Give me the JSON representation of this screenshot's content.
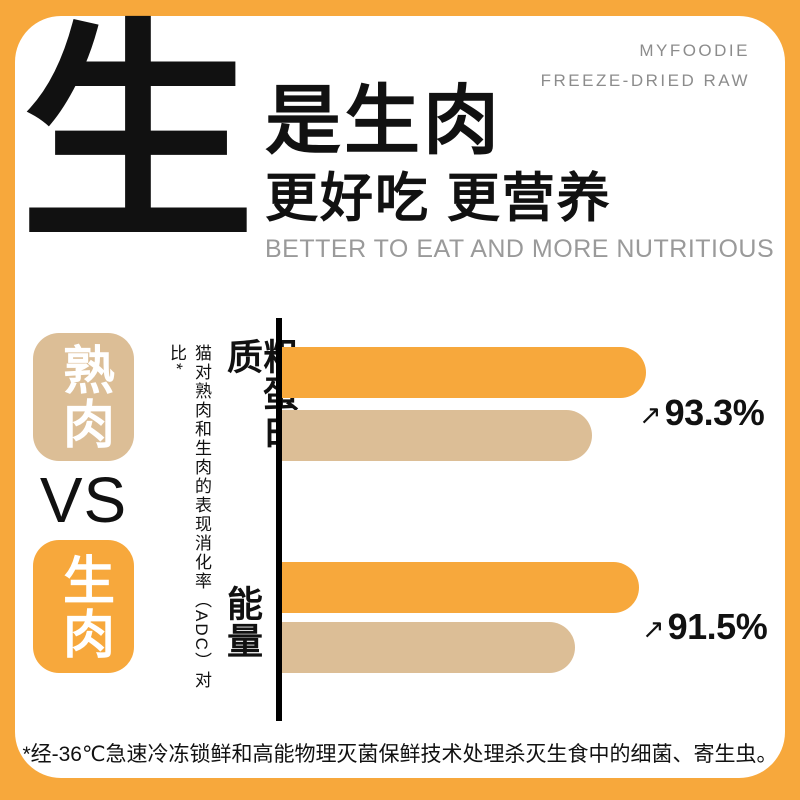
{
  "brand": {
    "line1": "MYFOODIE",
    "line2": "FREEZE-DRIED RAW"
  },
  "hero": {
    "big_char": "生",
    "title": "是生肉",
    "subtitle": "更好吃 更营养",
    "subtitle_en": "BETTER TO EAT AND MORE NUTRITIOUS"
  },
  "comparison": {
    "cooked_label": "熟肉",
    "vs_label": "VS",
    "raw_label": "生肉"
  },
  "chart_data": {
    "type": "bar",
    "orientation": "horizontal",
    "title": "猫对熟肉和生肉的表现消化率（ADC）对比*",
    "categories": [
      "粗蛋白质",
      "能量"
    ],
    "series": [
      {
        "name": "生肉",
        "color": "#F7A83C",
        "values": [
          93.3,
          91.5
        ],
        "value_labels": [
          "93.3%",
          "91.5%"
        ],
        "labeled": true
      },
      {
        "name": "熟肉",
        "color": "#DCBE96",
        "values": [
          79.5,
          75.2
        ],
        "value_labels": [
          "",
          ""
        ],
        "labeled": false,
        "estimated": true
      }
    ],
    "xlim": [
      0,
      100
    ],
    "grid": false,
    "legend_position": "left",
    "arrow_icon": "↗"
  },
  "footnote": "*经-36℃急速冷冻锁鲜和高能物理灭菌保鲜技术处理杀灭生食中的细菌、寄生虫。",
  "colors": {
    "accent_orange": "#F7A83C",
    "tan": "#DCBE96",
    "text_black": "#111111",
    "muted_gray": "#8C8C8C"
  }
}
